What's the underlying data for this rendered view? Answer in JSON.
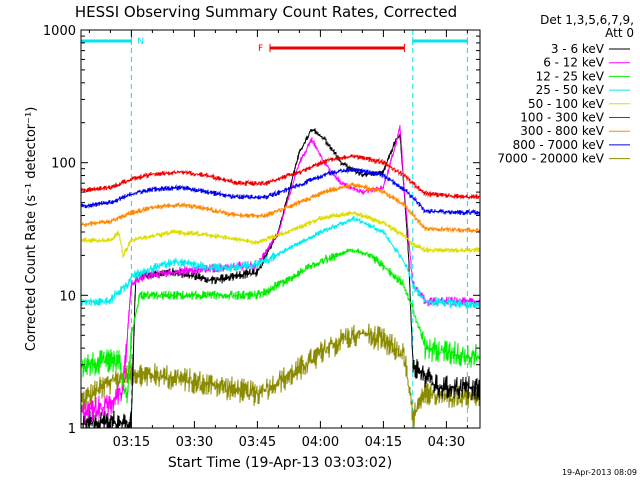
{
  "chart_data": {
    "type": "line",
    "title": "HESSI Observing Summary Count Rates, Corrected",
    "xlabel": "Start Time (19-Apr-13 03:03:02)",
    "ylabel": "Corrected Count Rate (s⁻¹ detector⁻¹)",
    "yscale": "log",
    "ylim": [
      1,
      1000
    ],
    "xlim": [
      "03:03",
      "04:38"
    ],
    "x_ticks": [
      "03:15",
      "03:30",
      "03:45",
      "04:00",
      "04:15",
      "04:30"
    ],
    "y_ticks": [
      "1",
      "10",
      "100",
      "1000"
    ],
    "legend_header": [
      "Det 1,3,5,6,7,9,",
      "Att 0"
    ],
    "legend_position": "right",
    "timestamp": "19-Apr-2013 08:09",
    "annotations": [
      {
        "label": "N",
        "kind": "night",
        "intervals": [
          [
            "03:03",
            "03:15"
          ],
          [
            "04:22",
            "04:35"
          ]
        ],
        "color": "#00e5ee"
      },
      {
        "label": "F",
        "kind": "flare",
        "intervals": [
          [
            "03:48",
            "04:20"
          ]
        ],
        "color": "#ee0000"
      }
    ],
    "vlines": [
      "03:15",
      "04:22",
      "04:35"
    ],
    "series": [
      {
        "name": "3 - 6 keV",
        "color": "#000000",
        "points": [
          [
            "03:03",
            1.1
          ],
          [
            "03:15",
            1.1
          ],
          [
            "03:16",
            14
          ],
          [
            "03:25",
            15
          ],
          [
            "03:35",
            13
          ],
          [
            "03:45",
            15
          ],
          [
            "03:50",
            30
          ],
          [
            "03:55",
            120
          ],
          [
            "03:58",
            180
          ],
          [
            "04:01",
            150
          ],
          [
            "04:05",
            100
          ],
          [
            "04:10",
            80
          ],
          [
            "04:15",
            85
          ],
          [
            "04:18",
            150
          ],
          [
            "04:19",
            160
          ],
          [
            "04:21",
            20
          ],
          [
            "04:22",
            3
          ],
          [
            "04:28",
            2
          ],
          [
            "04:35",
            2
          ]
        ]
      },
      {
        "name": "6 - 12 keV",
        "color": "#ff00ff",
        "points": [
          [
            "03:03",
            1.3
          ],
          [
            "03:10",
            1.5
          ],
          [
            "03:13",
            2
          ],
          [
            "03:15",
            12
          ],
          [
            "03:18",
            14
          ],
          [
            "03:25",
            15
          ],
          [
            "03:35",
            16
          ],
          [
            "03:45",
            17
          ],
          [
            "03:50",
            30
          ],
          [
            "03:55",
            100
          ],
          [
            "03:58",
            150
          ],
          [
            "04:01",
            100
          ],
          [
            "04:05",
            70
          ],
          [
            "04:10",
            60
          ],
          [
            "04:15",
            65
          ],
          [
            "04:18",
            140
          ],
          [
            "04:19",
            190
          ],
          [
            "04:20",
            60
          ],
          [
            "04:22",
            12
          ],
          [
            "04:25",
            9
          ],
          [
            "04:35",
            9
          ]
        ]
      },
      {
        "name": "12 - 25 keV",
        "color": "#00ee00",
        "points": [
          [
            "03:03",
            3
          ],
          [
            "03:12",
            3.2
          ],
          [
            "03:14",
            1.5
          ],
          [
            "03:15",
            5
          ],
          [
            "03:17",
            10
          ],
          [
            "03:25",
            10
          ],
          [
            "03:35",
            10
          ],
          [
            "03:45",
            10
          ],
          [
            "03:50",
            12
          ],
          [
            "04:00",
            18
          ],
          [
            "04:07",
            22
          ],
          [
            "04:12",
            20
          ],
          [
            "04:20",
            12
          ],
          [
            "04:22",
            8
          ],
          [
            "04:25",
            4
          ],
          [
            "04:35",
            3.5
          ]
        ]
      },
      {
        "name": "25 - 50 keV",
        "color": "#00eeee",
        "points": [
          [
            "03:03",
            9
          ],
          [
            "03:10",
            9
          ],
          [
            "03:11",
            10
          ],
          [
            "03:14",
            12
          ],
          [
            "03:15",
            14
          ],
          [
            "03:25",
            18
          ],
          [
            "03:35",
            16
          ],
          [
            "03:45",
            17
          ],
          [
            "03:52",
            22
          ],
          [
            "04:00",
            30
          ],
          [
            "04:08",
            38
          ],
          [
            "04:15",
            30
          ],
          [
            "04:20",
            18
          ],
          [
            "04:22",
            12
          ],
          [
            "04:25",
            9
          ],
          [
            "04:35",
            8.5
          ]
        ]
      },
      {
        "name": "50 - 100 keV",
        "color": "#dddd00",
        "points": [
          [
            "03:03",
            26
          ],
          [
            "03:10",
            26
          ],
          [
            "03:12",
            30
          ],
          [
            "03:13",
            20
          ],
          [
            "03:15",
            26
          ],
          [
            "03:25",
            30
          ],
          [
            "03:35",
            28
          ],
          [
            "03:45",
            25
          ],
          [
            "03:52",
            30
          ],
          [
            "04:00",
            38
          ],
          [
            "04:08",
            42
          ],
          [
            "04:15",
            35
          ],
          [
            "04:20",
            28
          ],
          [
            "04:22",
            24
          ],
          [
            "04:25",
            22
          ],
          [
            "04:35",
            22
          ]
        ]
      },
      {
        "name": "100 - 300 keV",
        "color": "#ee0000",
        "points": [
          [
            "03:03",
            62
          ],
          [
            "03:10",
            65
          ],
          [
            "03:15",
            75
          ],
          [
            "03:20",
            82
          ],
          [
            "03:27",
            85
          ],
          [
            "03:33",
            80
          ],
          [
            "03:40",
            70
          ],
          [
            "03:47",
            70
          ],
          [
            "03:55",
            85
          ],
          [
            "04:02",
            105
          ],
          [
            "04:08",
            112
          ],
          [
            "04:15",
            100
          ],
          [
            "04:20",
            80
          ],
          [
            "04:22",
            70
          ],
          [
            "04:25",
            58
          ],
          [
            "04:35",
            55
          ]
        ]
      },
      {
        "name": "300 - 800 keV",
        "color": "#ff8800",
        "points": [
          [
            "03:03",
            34
          ],
          [
            "03:10",
            36
          ],
          [
            "03:15",
            42
          ],
          [
            "03:20",
            46
          ],
          [
            "03:27",
            48
          ],
          [
            "03:33",
            45
          ],
          [
            "03:40",
            40
          ],
          [
            "03:47",
            40
          ],
          [
            "03:55",
            50
          ],
          [
            "04:02",
            62
          ],
          [
            "04:08",
            68
          ],
          [
            "04:15",
            60
          ],
          [
            "04:20",
            48
          ],
          [
            "04:22",
            40
          ],
          [
            "04:25",
            32
          ],
          [
            "04:35",
            31
          ]
        ]
      },
      {
        "name": "800 - 7000 keV",
        "color": "#0000ee",
        "points": [
          [
            "03:03",
            47
          ],
          [
            "03:10",
            50
          ],
          [
            "03:15",
            58
          ],
          [
            "03:20",
            63
          ],
          [
            "03:27",
            65
          ],
          [
            "03:33",
            60
          ],
          [
            "03:40",
            55
          ],
          [
            "03:47",
            55
          ],
          [
            "03:55",
            68
          ],
          [
            "04:02",
            83
          ],
          [
            "04:08",
            90
          ],
          [
            "04:15",
            80
          ],
          [
            "04:20",
            63
          ],
          [
            "04:22",
            55
          ],
          [
            "04:25",
            43
          ],
          [
            "04:35",
            42
          ]
        ]
      },
      {
        "name": "7000 - 20000 keV",
        "color": "#8b8b00",
        "points": [
          [
            "03:03",
            1.6
          ],
          [
            "03:10",
            2.2
          ],
          [
            "03:15",
            2.6
          ],
          [
            "03:25",
            2.4
          ],
          [
            "03:35",
            2.1
          ],
          [
            "03:45",
            1.8
          ],
          [
            "03:50",
            2.2
          ],
          [
            "03:55",
            2.8
          ],
          [
            "04:00",
            3.6
          ],
          [
            "04:05",
            4.6
          ],
          [
            "04:10",
            5.2
          ],
          [
            "04:15",
            4.6
          ],
          [
            "04:20",
            3.5
          ],
          [
            "04:22",
            1.2
          ],
          [
            "04:25",
            1.8
          ],
          [
            "04:35",
            1.7
          ]
        ]
      }
    ]
  }
}
